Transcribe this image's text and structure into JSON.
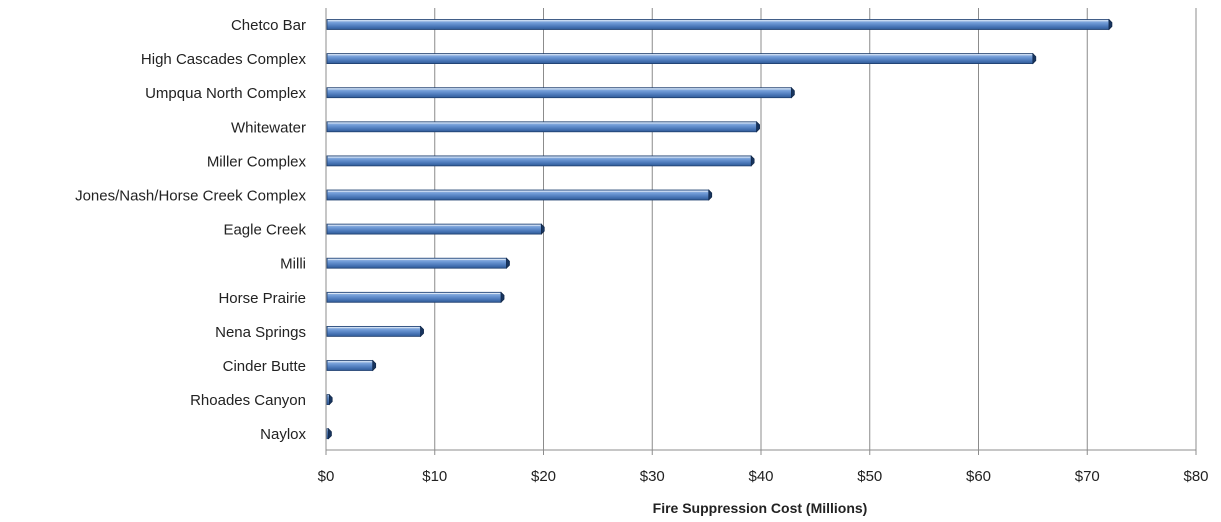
{
  "chart_data": {
    "type": "bar",
    "orientation": "horizontal",
    "categories": [
      "Chetco Bar",
      "High Cascades Complex",
      "Umpqua North Complex",
      "Whitewater",
      "Miller Complex",
      "Jones/Nash/Horse Creek Complex",
      "Eagle Creek",
      "Milli",
      "Horse Prairie",
      "Nena Springs",
      "Cinder Butte",
      "Rhoades Canyon",
      "Naylox"
    ],
    "values": [
      72.0,
      65.0,
      42.8,
      39.6,
      39.1,
      35.2,
      19.8,
      16.6,
      16.1,
      8.7,
      4.3,
      0.3,
      0.1
    ],
    "xlabel": "Fire Suppression Cost (Millions)",
    "ylabel": "",
    "xlim": [
      0,
      80
    ],
    "xticks": [
      0,
      10,
      20,
      30,
      40,
      50,
      60,
      70,
      80
    ],
    "xtick_labels": [
      "$0",
      "$10",
      "$20",
      "$30",
      "$40",
      "$50",
      "$60",
      "$70",
      "$80"
    ],
    "grid": "vertical",
    "legend": "none",
    "bar_color": "#4f81bd"
  }
}
